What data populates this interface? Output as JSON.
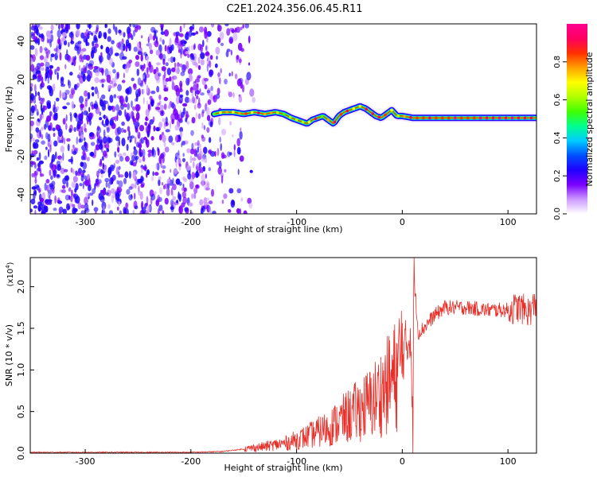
{
  "title": "C2E1.2024.356.06.45.R11",
  "chart_data": [
    {
      "type": "heatmap",
      "xlabel": "Height of straight line (km)",
      "ylabel": "Frequency (Hz)",
      "xlim": [
        -352,
        127
      ],
      "ylim": [
        -50,
        49
      ],
      "xticks": [
        "-300",
        "-200",
        "-100",
        "0",
        "100"
      ],
      "xtick_values": [
        -300,
        -200,
        -100,
        0,
        100
      ],
      "yticks": [
        "-40",
        "-20",
        "0",
        "20",
        "40"
      ],
      "ytick_values": [
        -40,
        -20,
        0,
        20,
        40
      ],
      "colorbar": {
        "label": "Normalized spectral amplitude",
        "range": [
          0,
          1
        ],
        "ticks": [
          "0.0",
          "0.2",
          "0.4",
          "0.6",
          "0.8"
        ],
        "tick_values": [
          0,
          0.2,
          0.4,
          0.6,
          0.8
        ],
        "colors": [
          "#ffffff",
          "#cc99ff",
          "#7a00ff",
          "#2000ff",
          "#0050ff",
          "#00ccff",
          "#00ff90",
          "#40ff00",
          "#b0ff00",
          "#ffff00",
          "#ffa000",
          "#ff3000",
          "#ff0060",
          "#ff0090"
        ]
      },
      "ridge": {
        "x": [
          -178,
          -170,
          -160,
          -150,
          -140,
          -130,
          -120,
          -112,
          -105,
          -100,
          -95,
          -90,
          -85,
          -80,
          -75,
          -70,
          -65,
          -60,
          -55,
          -50,
          -45,
          -40,
          -35,
          -30,
          -25,
          -20,
          -15,
          -10,
          -5,
          0,
          10,
          20,
          40,
          60,
          80,
          100,
          120,
          127
        ],
        "freq": [
          2,
          3,
          3,
          2,
          3,
          2,
          3,
          2,
          0,
          -1,
          -2,
          -3,
          -1,
          0,
          1,
          -1,
          -3,
          1,
          3,
          4,
          5,
          6,
          5,
          3,
          1,
          0,
          2,
          4,
          1,
          1,
          0,
          0,
          0,
          0,
          0,
          0,
          0,
          0
        ]
      }
    },
    {
      "type": "line",
      "xlabel": "Height of straight line (km)",
      "ylabel": "SNR (10 * v/v)",
      "scale_label": "(x10",
      "scale_exp": "4",
      "scale_close": ")",
      "xlim": [
        -352,
        127
      ],
      "ylim": [
        0,
        2.35
      ],
      "xticks": [
        "-300",
        "-200",
        "-100",
        "0",
        "100"
      ],
      "xtick_values": [
        -300,
        -200,
        -100,
        0,
        100
      ],
      "yticks": [
        "0.0",
        "0.5",
        "1.0",
        "1.5",
        "2.0"
      ],
      "ytick_values": [
        0,
        0.5,
        1.0,
        1.5,
        2.0
      ],
      "color": "#e8302a",
      "series": [
        {
          "x": [
            -352,
            -300,
            -250,
            -200,
            -170,
            -150,
            -130,
            -110,
            -90,
            -70,
            -50,
            -30,
            -15,
            -5,
            0,
            5,
            8,
            10,
            11,
            15,
            20,
            30,
            40,
            60,
            80,
            100,
            110,
            120,
            127
          ],
          "y": [
            0.01,
            0.01,
            0.01,
            0.01,
            0.02,
            0.05,
            0.08,
            0.12,
            0.2,
            0.3,
            0.45,
            0.6,
            0.8,
            0.95,
            1.2,
            1.3,
            1.5,
            0.1,
            2.15,
            1.45,
            1.5,
            1.65,
            1.75,
            1.75,
            1.72,
            1.72,
            1.75,
            1.7,
            1.8
          ]
        }
      ]
    }
  ]
}
